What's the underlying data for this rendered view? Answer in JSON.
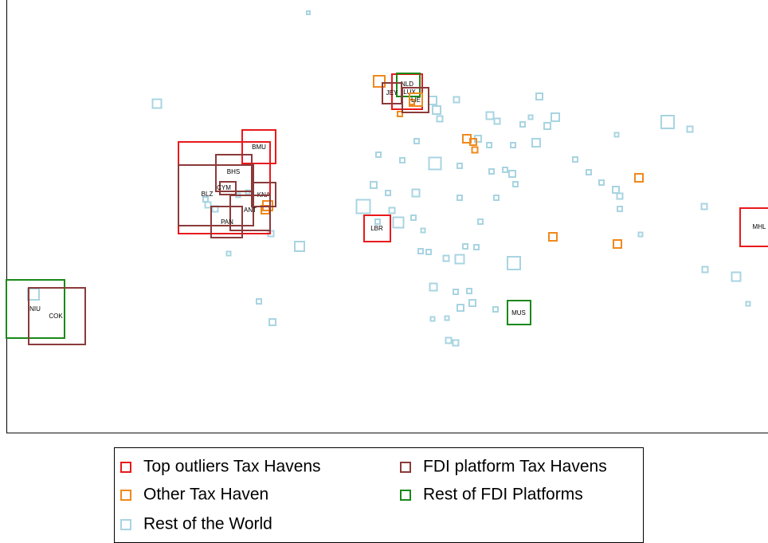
{
  "nodes": [
    {
      "label": "NLD"
    },
    {
      "label": "JEY"
    },
    {
      "label": "LUX"
    },
    {
      "label": "LIE"
    },
    {
      "label": "BMU"
    },
    {
      "label": "BHS"
    },
    {
      "label": "CYM"
    },
    {
      "label": "BLZ"
    },
    {
      "label": "KNA"
    },
    {
      "label": "ANT"
    },
    {
      "label": "PAN"
    },
    {
      "label": "LBR"
    },
    {
      "label": "MHL"
    },
    {
      "label": "NIU"
    },
    {
      "label": "COK"
    },
    {
      "label": "MUS"
    }
  ],
  "legend": [
    {
      "label": "Top outliers Tax Havens"
    },
    {
      "label": "FDI platform Tax Havens"
    },
    {
      "label": "Other Tax Haven"
    },
    {
      "label": "Rest of FDI Platforms"
    },
    {
      "label": "Rest of the World"
    }
  ]
}
